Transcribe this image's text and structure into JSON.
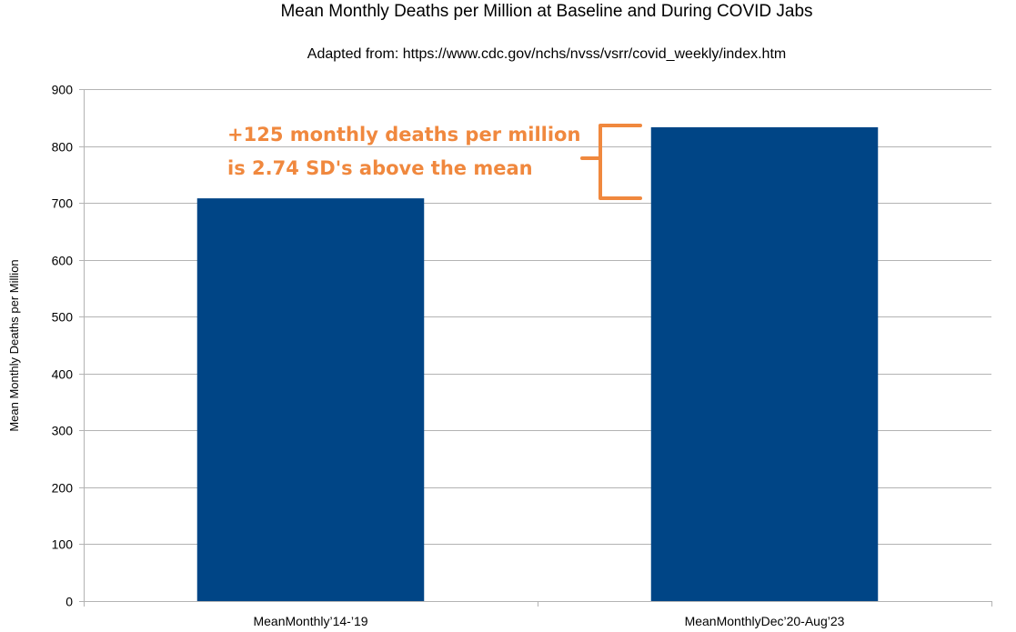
{
  "chart_data": {
    "type": "bar",
    "title": "Mean Monthly Deaths per Million at Baseline and During COVID Jabs",
    "subtitle": "Adapted from: https://www.cdc.gov/nchs/nvss/vsrr/covid_weekly/index.htm",
    "xlabel": "",
    "ylabel": "Mean Monthly Deaths per Million",
    "categories": [
      "MeanMonthly’14-’19",
      "MeanMonthlyDec’20-Aug’23"
    ],
    "values": [
      708,
      833
    ],
    "ylim": [
      0,
      900
    ],
    "yticks": [
      0,
      100,
      200,
      300,
      400,
      500,
      600,
      700,
      800,
      900
    ],
    "grid": true,
    "legend": "none",
    "annotations": [
      "+125 monthly deaths per million",
      "is 2.74 SD's above the mean"
    ]
  },
  "colors": {
    "bar": "#004586",
    "annotation": "#f0883e",
    "grid": "#b3b3b3"
  }
}
